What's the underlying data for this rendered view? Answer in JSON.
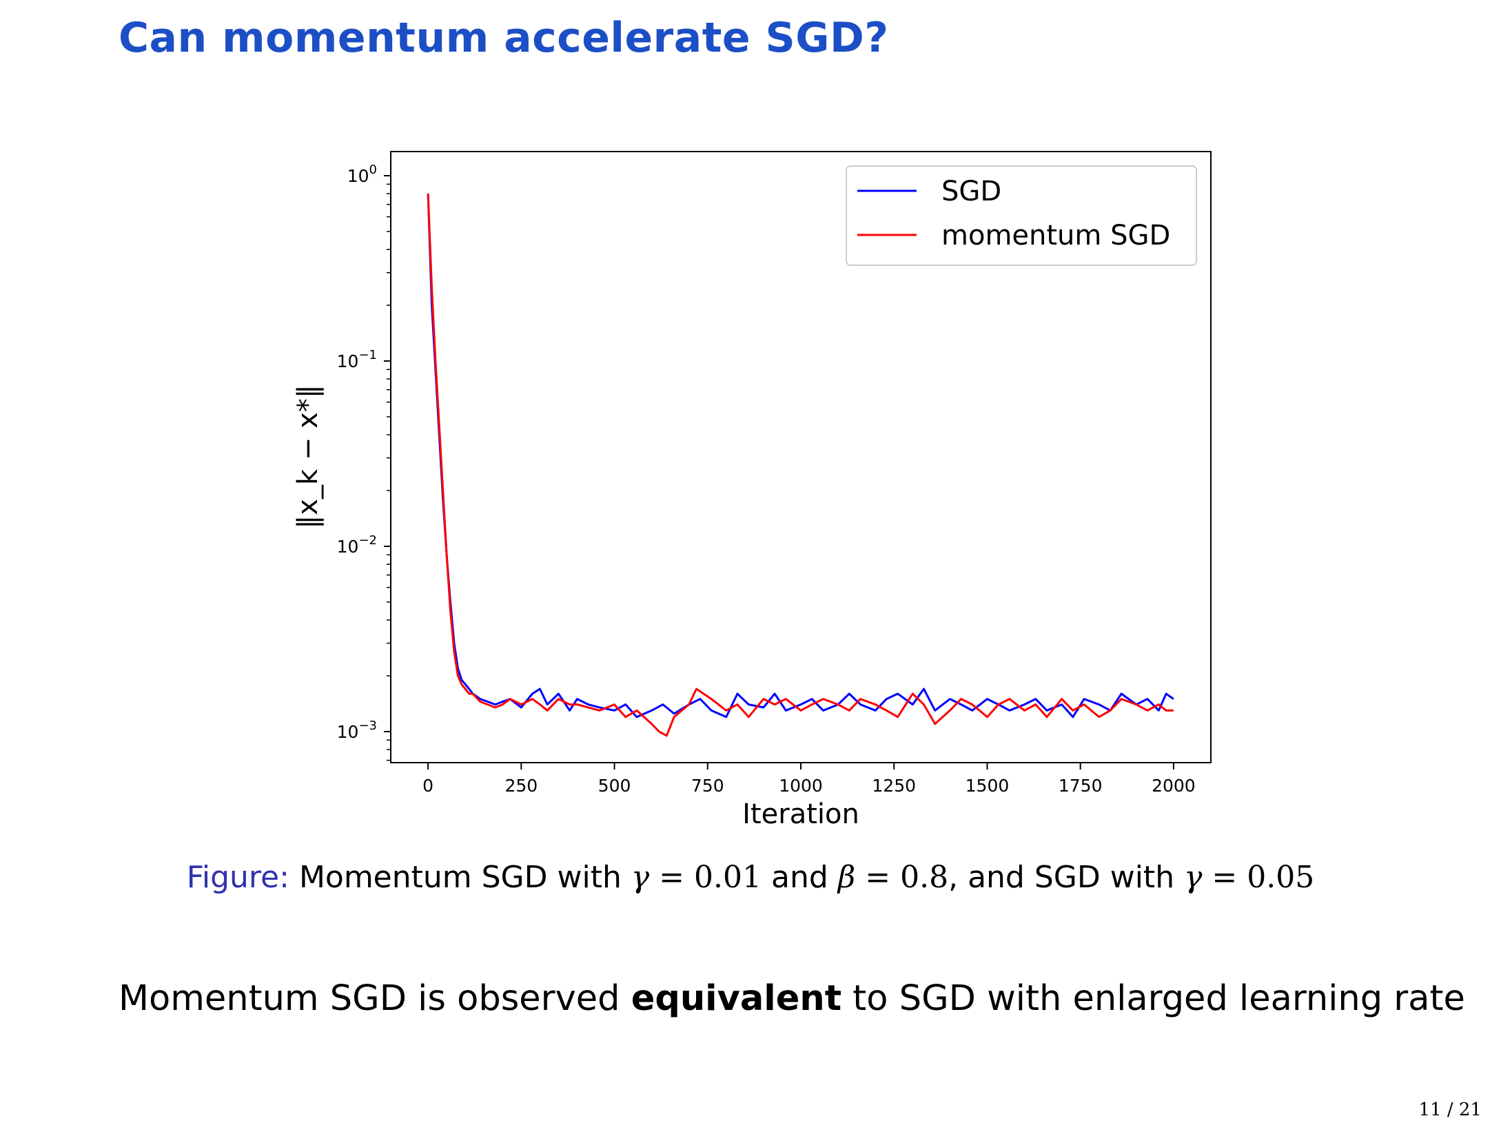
{
  "slide": {
    "title": "Can momentum accelerate SGD?",
    "page": "11 / 21"
  },
  "caption": {
    "label": "Figure:",
    "t1": "Momentum SGD with",
    "gamma_sym": "γ",
    "eq": "=",
    "gamma_momentum": "0.01",
    "t2": "and",
    "beta_sym": "β",
    "beta": "0.8",
    "t3": ", and SGD with",
    "gamma_sgd": "0.05"
  },
  "statement": {
    "before": "Momentum SGD is observed",
    "bold": "equivalent",
    "after": "to SGD with enlarged learning rate"
  },
  "colors": {
    "title": "#1c4fc6",
    "sgd": "#0000ff",
    "momentum": "#ff0000",
    "caption_label": "#3030b0"
  },
  "chart_data": {
    "type": "line",
    "xlabel": "Iteration",
    "ylabel": "‖x_k − x*‖",
    "x_ticks": [
      0,
      250,
      500,
      750,
      1000,
      1250,
      1500,
      1750,
      2000
    ],
    "y_ticks": [
      {
        "base": "10",
        "exp": "0",
        "value": 1
      },
      {
        "base": "10",
        "exp": "−1",
        "value": 0.1
      },
      {
        "base": "10",
        "exp": "−2",
        "value": 0.01
      },
      {
        "base": "10",
        "exp": "−3",
        "value": 0.001
      }
    ],
    "xlim": [
      -100,
      2100
    ],
    "ylim": [
      0.00068,
      1.35
    ],
    "y_scale": "log",
    "legend_position": "top-right",
    "series": [
      {
        "name": "SGD",
        "color": "#0000ff",
        "x": [
          0,
          10,
          20,
          30,
          40,
          50,
          60,
          70,
          80,
          90,
          100,
          110,
          120,
          140,
          160,
          180,
          200,
          220,
          250,
          280,
          300,
          320,
          350,
          380,
          400,
          430,
          460,
          500,
          530,
          560,
          600,
          630,
          660,
          700,
          730,
          760,
          800,
          830,
          860,
          900,
          930,
          960,
          1000,
          1030,
          1060,
          1100,
          1130,
          1160,
          1200,
          1230,
          1260,
          1300,
          1330,
          1360,
          1400,
          1430,
          1460,
          1500,
          1530,
          1560,
          1600,
          1630,
          1660,
          1700,
          1730,
          1760,
          1800,
          1830,
          1860,
          1900,
          1930,
          1960,
          1980,
          2000
        ],
        "y": [
          0.8,
          0.2,
          0.09,
          0.04,
          0.018,
          0.009,
          0.005,
          0.003,
          0.0022,
          0.0019,
          0.0018,
          0.0017,
          0.0016,
          0.0015,
          0.00145,
          0.0014,
          0.00145,
          0.0015,
          0.00135,
          0.0016,
          0.0017,
          0.0014,
          0.0016,
          0.0013,
          0.0015,
          0.0014,
          0.00135,
          0.0013,
          0.0014,
          0.0012,
          0.0013,
          0.0014,
          0.00125,
          0.0014,
          0.0015,
          0.0013,
          0.0012,
          0.0016,
          0.0014,
          0.00135,
          0.0016,
          0.0013,
          0.0014,
          0.0015,
          0.0013,
          0.0014,
          0.0016,
          0.0014,
          0.0013,
          0.0015,
          0.0016,
          0.0014,
          0.0017,
          0.0013,
          0.0015,
          0.0014,
          0.0013,
          0.0015,
          0.0014,
          0.0013,
          0.0014,
          0.0015,
          0.0013,
          0.0014,
          0.0012,
          0.0015,
          0.0014,
          0.0013,
          0.0016,
          0.0014,
          0.0015,
          0.0013,
          0.0016,
          0.0015
        ]
      },
      {
        "name": "momentum SGD",
        "color": "#ff0000",
        "x": [
          0,
          10,
          20,
          30,
          40,
          50,
          60,
          70,
          80,
          90,
          100,
          110,
          120,
          140,
          160,
          180,
          200,
          220,
          250,
          280,
          300,
          320,
          350,
          380,
          400,
          430,
          460,
          500,
          530,
          560,
          600,
          620,
          640,
          660,
          700,
          720,
          760,
          800,
          830,
          860,
          900,
          930,
          960,
          1000,
          1030,
          1060,
          1100,
          1130,
          1160,
          1200,
          1230,
          1260,
          1300,
          1330,
          1360,
          1400,
          1430,
          1460,
          1500,
          1530,
          1560,
          1600,
          1630,
          1660,
          1700,
          1730,
          1760,
          1800,
          1830,
          1860,
          1900,
          1930,
          1960,
          1980,
          2000
        ],
        "y": [
          0.8,
          0.25,
          0.1,
          0.045,
          0.02,
          0.009,
          0.0045,
          0.0027,
          0.002,
          0.0018,
          0.0017,
          0.0016,
          0.0016,
          0.00145,
          0.0014,
          0.00135,
          0.0014,
          0.0015,
          0.0014,
          0.0015,
          0.0014,
          0.0013,
          0.0015,
          0.0014,
          0.0014,
          0.00135,
          0.0013,
          0.0014,
          0.0012,
          0.0013,
          0.0011,
          0.001,
          0.00095,
          0.0012,
          0.0014,
          0.0017,
          0.0015,
          0.0013,
          0.0014,
          0.0012,
          0.0015,
          0.0014,
          0.0015,
          0.0013,
          0.0014,
          0.0015,
          0.0014,
          0.0013,
          0.0015,
          0.0014,
          0.0013,
          0.0012,
          0.0016,
          0.0014,
          0.0011,
          0.0013,
          0.0015,
          0.0014,
          0.0012,
          0.0014,
          0.0015,
          0.0013,
          0.0014,
          0.0012,
          0.0015,
          0.0013,
          0.0014,
          0.0012,
          0.0013,
          0.0015,
          0.0014,
          0.0013,
          0.0014,
          0.0013,
          0.0013
        ]
      }
    ]
  }
}
